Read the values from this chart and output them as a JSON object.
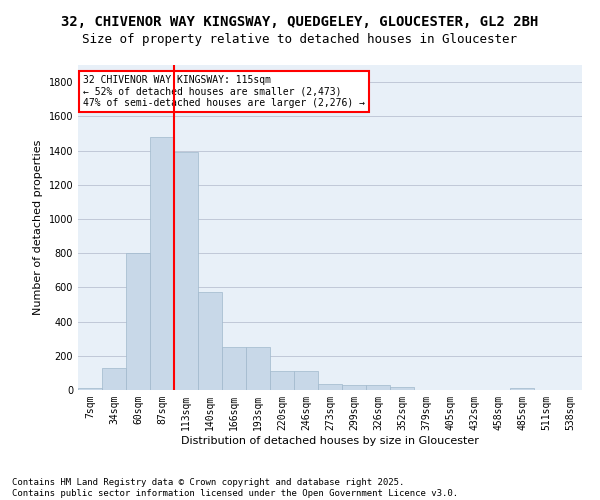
{
  "title_line1": "32, CHIVENOR WAY KINGSWAY, QUEDGELEY, GLOUCESTER, GL2 2BH",
  "title_line2": "Size of property relative to detached houses in Gloucester",
  "xlabel": "Distribution of detached houses by size in Gloucester",
  "ylabel": "Number of detached properties",
  "bar_labels": [
    "7sqm",
    "34sqm",
    "60sqm",
    "87sqm",
    "113sqm",
    "140sqm",
    "166sqm",
    "193sqm",
    "220sqm",
    "246sqm",
    "273sqm",
    "299sqm",
    "326sqm",
    "352sqm",
    "379sqm",
    "405sqm",
    "432sqm",
    "458sqm",
    "485sqm",
    "511sqm",
    "538sqm"
  ],
  "bar_values": [
    10,
    130,
    800,
    1480,
    1390,
    575,
    250,
    250,
    110,
    110,
    35,
    30,
    30,
    18,
    0,
    0,
    0,
    0,
    10,
    0,
    0
  ],
  "bar_color": "#c8d8e8",
  "bar_edgecolor": "#a0b8cc",
  "vline_color": "red",
  "vline_index": 4,
  "annotation_text": "32 CHIVENOR WAY KINGSWAY: 115sqm\n← 52% of detached houses are smaller (2,473)\n47% of semi-detached houses are larger (2,276) →",
  "annotation_box_color": "white",
  "annotation_box_edgecolor": "red",
  "ylim": [
    0,
    1900
  ],
  "yticks": [
    0,
    200,
    400,
    600,
    800,
    1000,
    1200,
    1400,
    1600,
    1800
  ],
  "grid_color": "#c0c8d8",
  "bg_color": "#e8f0f8",
  "footer_line1": "Contains HM Land Registry data © Crown copyright and database right 2025.",
  "footer_line2": "Contains public sector information licensed under the Open Government Licence v3.0.",
  "title_fontsize": 10,
  "subtitle_fontsize": 9,
  "footer_fontsize": 6.5,
  "ylabel_fontsize": 8,
  "xlabel_fontsize": 8,
  "tick_fontsize": 7,
  "annot_fontsize": 7
}
